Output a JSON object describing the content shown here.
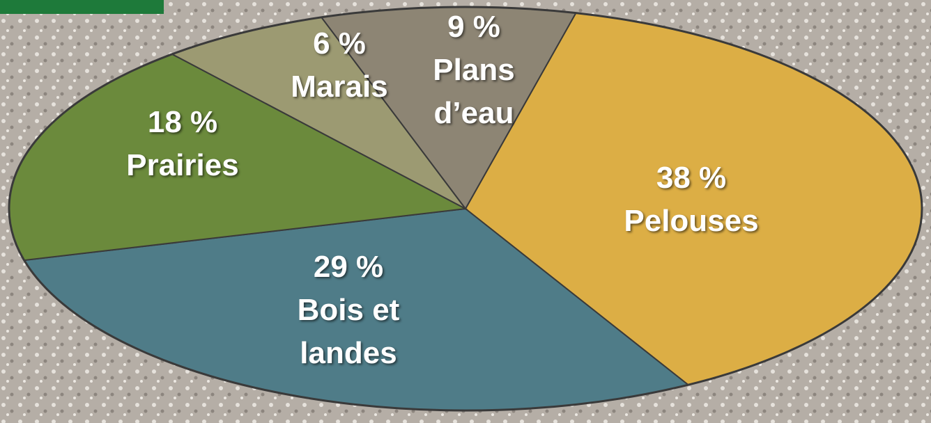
{
  "chart_data": {
    "type": "pie",
    "categories": [
      "Pelouses",
      "Bois et landes",
      "Prairies",
      "Marais",
      "Plans d’eau"
    ],
    "values": [
      38,
      29,
      18,
      6,
      9
    ],
    "value_labels": [
      "38 %",
      "29 %",
      "18 %",
      "6 %",
      "9 %"
    ],
    "colors": [
      "#dcae45",
      "#4f7c88",
      "#6b8a3c",
      "#9c9a72",
      "#8d8574"
    ]
  }
}
